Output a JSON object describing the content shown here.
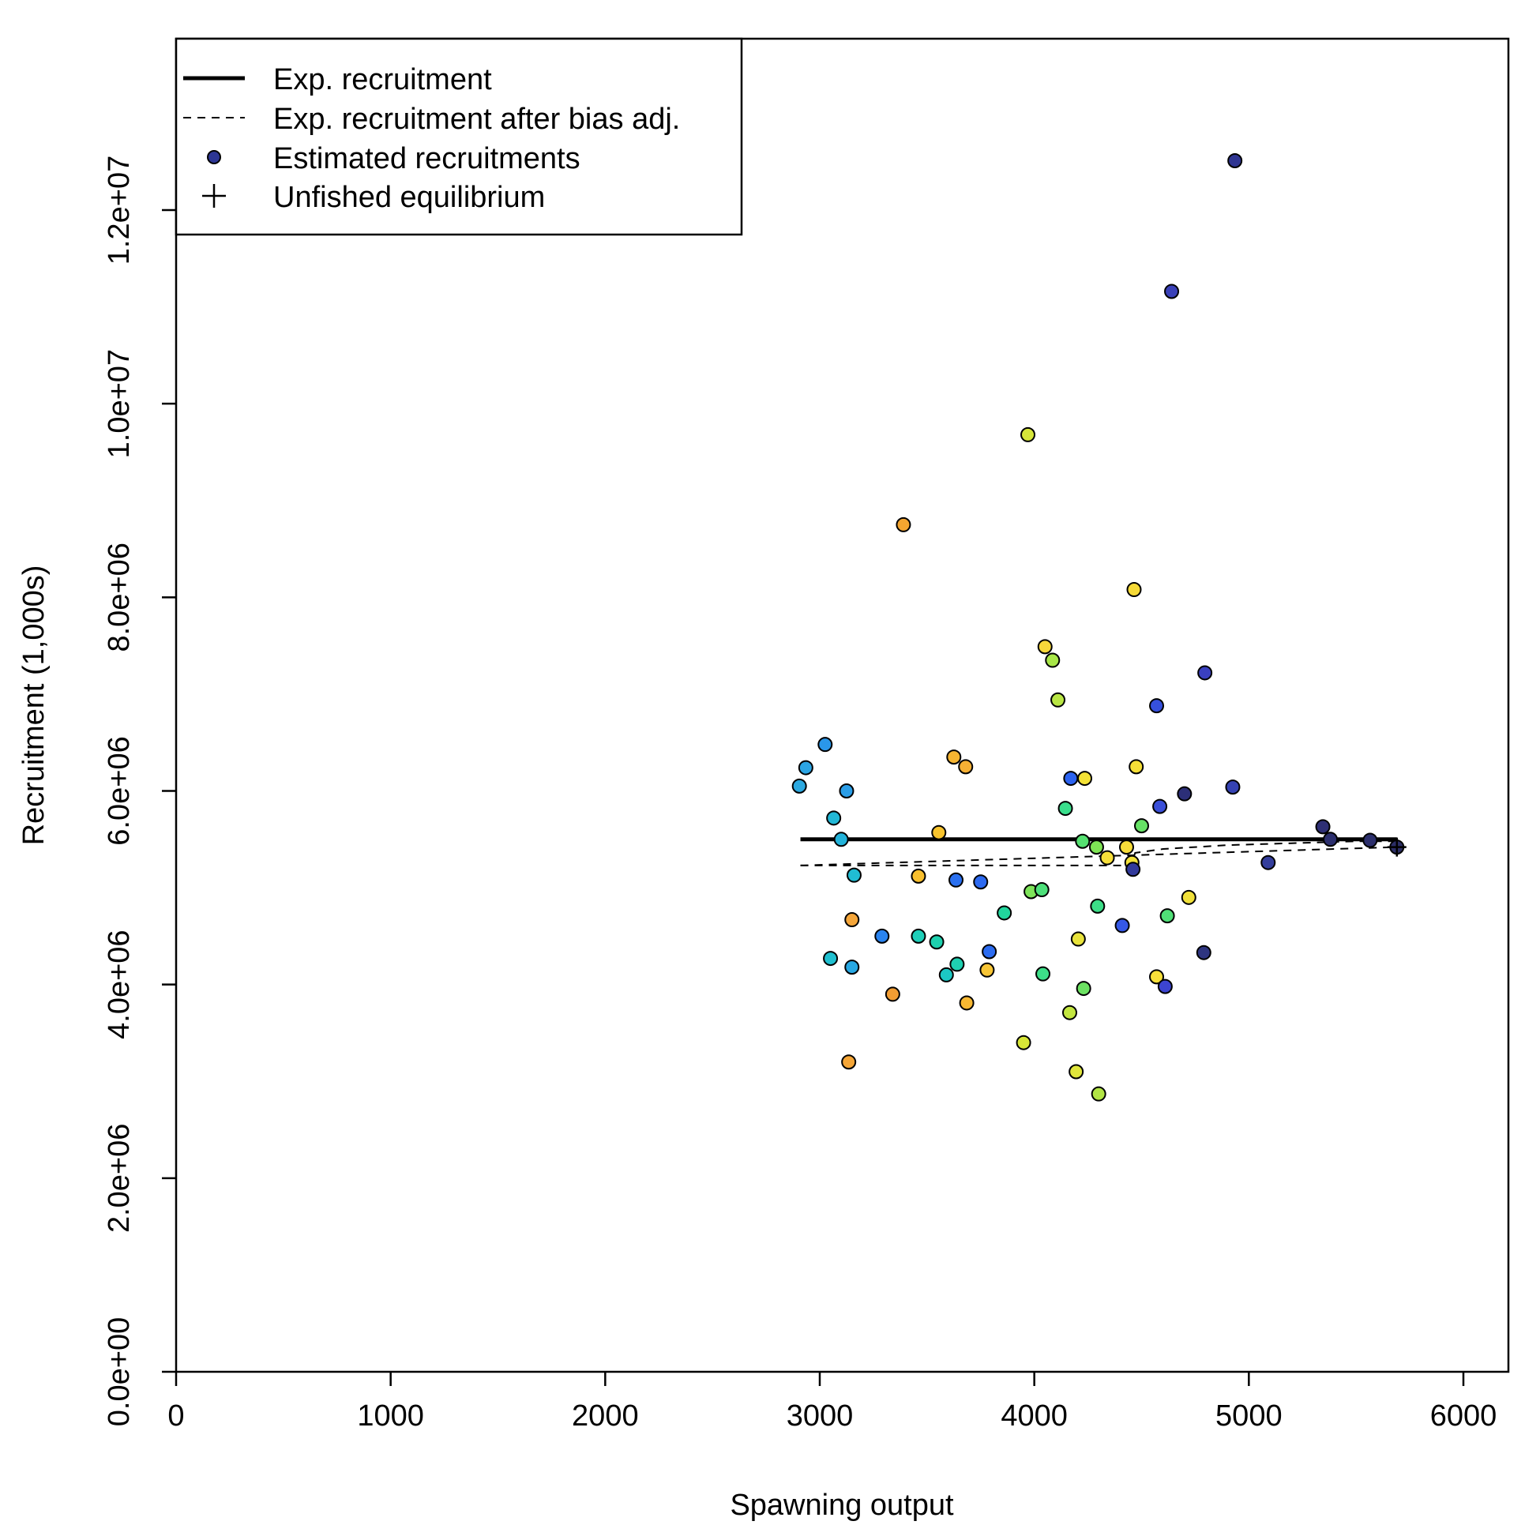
{
  "chart_data": {
    "type": "scatter",
    "xlabel": "Spawning output",
    "ylabel": "Recruitment (1,000s)",
    "xlim": [
      0,
      6250
    ],
    "ylim": [
      0,
      13700000
    ],
    "x_ticks": [
      0,
      1000,
      2000,
      3000,
      4000,
      5000,
      6000
    ],
    "x_tick_labels": [
      "0",
      "1000",
      "2000",
      "3000",
      "4000",
      "5000",
      "6000"
    ],
    "y_ticks": [
      0,
      2000000,
      4000000,
      6000000,
      8000000,
      10000000,
      12000000
    ],
    "y_tick_labels": [
      "0.0e+00",
      "2.0e+06",
      "4.0e+06",
      "6.0e+06",
      "8.0e+06",
      "1.0e+07",
      "1.2e+07"
    ],
    "grid": false,
    "legend": {
      "placement": "top-left",
      "entries": [
        {
          "label": "Exp. recruitment",
          "symbol": "solid-line"
        },
        {
          "label": "Exp. recruitment after bias adj.",
          "symbol": "dashed-line"
        },
        {
          "label": "Estimated recruitments",
          "symbol": "point"
        },
        {
          "label": "Unfished equilibrium",
          "symbol": "plus"
        }
      ]
    },
    "exp_recruitment": {
      "x": [
        2910,
        5690
      ],
      "y": [
        5500000,
        5500000
      ]
    },
    "exp_recruitment_bias_adj": {
      "x": [
        2910,
        4450,
        4470,
        4600,
        4750,
        4900,
        5050,
        5200,
        5350,
        5500,
        5690
      ],
      "y": [
        5230000,
        5230000,
        5360000,
        5400000,
        5420000,
        5440000,
        5450000,
        5460000,
        5470000,
        5480000,
        5480000
      ]
    },
    "bias_adj_return": {
      "x": [
        2910,
        5690
      ],
      "y": [
        5230000,
        5420000
      ]
    },
    "estimated_recruitments": [
      {
        "x": 2905,
        "y": 6050000,
        "color": "#2ca9e0"
      },
      {
        "x": 2935,
        "y": 6240000,
        "color": "#2ca5e4"
      },
      {
        "x": 3025,
        "y": 6480000,
        "color": "#2a97ea"
      },
      {
        "x": 3065,
        "y": 5720000,
        "color": "#22b8d6"
      },
      {
        "x": 3100,
        "y": 5500000,
        "color": "#23b3da"
      },
      {
        "x": 3125,
        "y": 6000000,
        "color": "#2b9ee8"
      },
      {
        "x": 3050,
        "y": 4270000,
        "color": "#20c0d0"
      },
      {
        "x": 3135,
        "y": 3200000,
        "color": "#f5a637"
      },
      {
        "x": 3150,
        "y": 4670000,
        "color": "#f5a63a"
      },
      {
        "x": 3150,
        "y": 4180000,
        "color": "#28a8e3"
      },
      {
        "x": 3160,
        "y": 5130000,
        "color": "#20bcd3"
      },
      {
        "x": 3290,
        "y": 4500000,
        "color": "#2a84f0"
      },
      {
        "x": 3340,
        "y": 3900000,
        "color": "#f29d33"
      },
      {
        "x": 3390,
        "y": 8750000,
        "color": "#f4a530"
      },
      {
        "x": 3460,
        "y": 5120000,
        "color": "#f8bf2e"
      },
      {
        "x": 3460,
        "y": 4500000,
        "color": "#1fcfb9"
      },
      {
        "x": 3545,
        "y": 4440000,
        "color": "#1ed0ae"
      },
      {
        "x": 3555,
        "y": 5570000,
        "color": "#f7c32d"
      },
      {
        "x": 3590,
        "y": 4100000,
        "color": "#1cc8c4"
      },
      {
        "x": 3625,
        "y": 6350000,
        "color": "#f6b531"
      },
      {
        "x": 3635,
        "y": 5080000,
        "color": "#2a70f0"
      },
      {
        "x": 3640,
        "y": 4210000,
        "color": "#1fcfb0"
      },
      {
        "x": 3680,
        "y": 6250000,
        "color": "#f6b034"
      },
      {
        "x": 3685,
        "y": 3810000,
        "color": "#f7b832"
      },
      {
        "x": 3750,
        "y": 5060000,
        "color": "#2d6af0"
      },
      {
        "x": 3780,
        "y": 4150000,
        "color": "#f7c536"
      },
      {
        "x": 3790,
        "y": 4340000,
        "color": "#2c6cf0"
      },
      {
        "x": 3860,
        "y": 4740000,
        "color": "#22d69d"
      },
      {
        "x": 3950,
        "y": 3400000,
        "color": "#d7e637"
      },
      {
        "x": 3970,
        "y": 9680000,
        "color": "#d6e63a"
      },
      {
        "x": 3985,
        "y": 4960000,
        "color": "#7ee45a"
      },
      {
        "x": 4035,
        "y": 4980000,
        "color": "#4ee07a"
      },
      {
        "x": 4040,
        "y": 4110000,
        "color": "#3dde88"
      },
      {
        "x": 4050,
        "y": 7490000,
        "color": "#f8d83a"
      },
      {
        "x": 4085,
        "y": 7350000,
        "color": "#a8e648"
      },
      {
        "x": 4110,
        "y": 6940000,
        "color": "#b9e644"
      },
      {
        "x": 4145,
        "y": 5820000,
        "color": "#3ade8c"
      },
      {
        "x": 4165,
        "y": 3710000,
        "color": "#c3e640"
      },
      {
        "x": 4170,
        "y": 6130000,
        "color": "#2c63f0"
      },
      {
        "x": 4195,
        "y": 3100000,
        "color": "#e0e63c"
      },
      {
        "x": 4205,
        "y": 4470000,
        "color": "#e8e33c"
      },
      {
        "x": 4225,
        "y": 5480000,
        "color": "#55e070"
      },
      {
        "x": 4230,
        "y": 3960000,
        "color": "#6ce262"
      },
      {
        "x": 4235,
        "y": 6130000,
        "color": "#f4e236"
      },
      {
        "x": 4290,
        "y": 5420000,
        "color": "#7ee455"
      },
      {
        "x": 4295,
        "y": 4810000,
        "color": "#3cdd87"
      },
      {
        "x": 4300,
        "y": 2870000,
        "color": "#b2e545"
      },
      {
        "x": 4340,
        "y": 5310000,
        "color": "#f7df3a"
      },
      {
        "x": 4410,
        "y": 4610000,
        "color": "#3558e6"
      },
      {
        "x": 4430,
        "y": 5420000,
        "color": "#f7dd3a"
      },
      {
        "x": 4455,
        "y": 5260000,
        "color": "#f4e23a"
      },
      {
        "x": 4460,
        "y": 5190000,
        "color": "#323a9b"
      },
      {
        "x": 4465,
        "y": 8080000,
        "color": "#f6da37"
      },
      {
        "x": 4475,
        "y": 6250000,
        "color": "#f6df37"
      },
      {
        "x": 4500,
        "y": 5640000,
        "color": "#67e266"
      },
      {
        "x": 4570,
        "y": 4080000,
        "color": "#f8e03a"
      },
      {
        "x": 4570,
        "y": 6880000,
        "color": "#3650dd"
      },
      {
        "x": 4585,
        "y": 5840000,
        "color": "#3a4fd8"
      },
      {
        "x": 4610,
        "y": 3980000,
        "color": "#3c44d0"
      },
      {
        "x": 4620,
        "y": 4710000,
        "color": "#50e077"
      },
      {
        "x": 4640,
        "y": 11160000,
        "color": "#3a41b8"
      },
      {
        "x": 4700,
        "y": 5970000,
        "color": "#2c2f78"
      },
      {
        "x": 4720,
        "y": 4900000,
        "color": "#f0e03a"
      },
      {
        "x": 4790,
        "y": 4330000,
        "color": "#2e3580"
      },
      {
        "x": 4795,
        "y": 7220000,
        "color": "#3a40c0"
      },
      {
        "x": 4925,
        "y": 6040000,
        "color": "#3542b2"
      },
      {
        "x": 4935,
        "y": 12510000,
        "color": "#2f3592"
      },
      {
        "x": 5090,
        "y": 5260000,
        "color": "#343e9c"
      },
      {
        "x": 5345,
        "y": 5630000,
        "color": "#2e2f74"
      },
      {
        "x": 5380,
        "y": 5500000,
        "color": "#2c2f6e"
      },
      {
        "x": 5565,
        "y": 5490000,
        "color": "#2c2f6c"
      },
      {
        "x": 5690,
        "y": 5420000,
        "color": "#2c2e66"
      }
    ],
    "unfished_equilibrium": {
      "x": 5690,
      "y": 5420000
    }
  }
}
